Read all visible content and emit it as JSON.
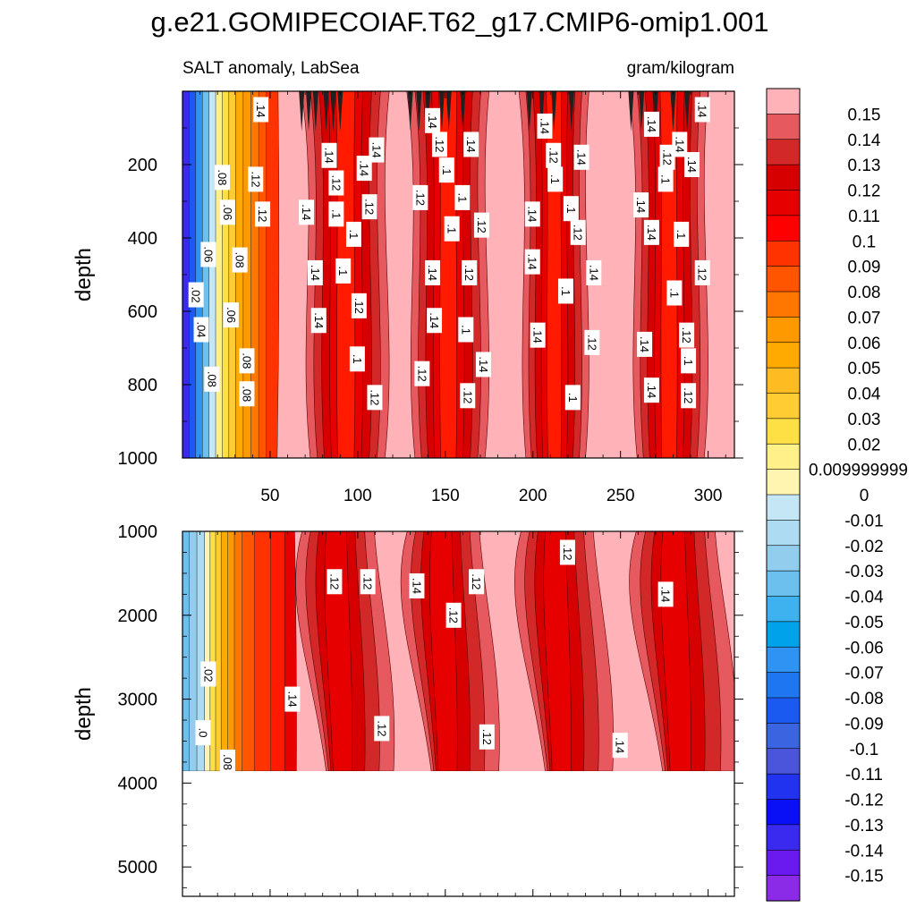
{
  "title": "g.e21.GOMIPECOIAF.T62_g17.CMIP6-omip1.001",
  "left_subtitle": "SALT anomaly, LabSea",
  "right_subtitle": "gram/kilogram",
  "chart_data": {
    "type": "heatmap",
    "description_units": "gram/kilogram",
    "x": {
      "range": [
        0,
        315
      ],
      "ticks": [
        50,
        100,
        150,
        200,
        250,
        300
      ]
    },
    "colorbar": {
      "labels": [
        "0.15",
        "0.14",
        "0.13",
        "0.12",
        "0.11",
        "0.1",
        "0.09",
        "0.08",
        "0.07",
        "0.06",
        "0.05",
        "0.04",
        "0.03",
        "0.02",
        "0.009999999",
        "0",
        "-0.01",
        "-0.02",
        "-0.03",
        "-0.04",
        "-0.05",
        "-0.06",
        "-0.07",
        "-0.08",
        "-0.09",
        "-0.1",
        "-0.11",
        "-0.12",
        "-0.13",
        "-0.14",
        "-0.15"
      ],
      "colors": [
        "#FFB3B8",
        "#E65A5F",
        "#D32828",
        "#D70000",
        "#E60000",
        "#FF0000",
        "#FF3300",
        "#FF5500",
        "#FF7700",
        "#FF9900",
        "#FFAA00",
        "#FFBB22",
        "#FFCC33",
        "#FFE044",
        "#FFF08A",
        "#FFF5B0",
        "#C4E6F5",
        "#ADDCF2",
        "#92CDEE",
        "#6CC0EE",
        "#3EB2EE",
        "#00A2EA",
        "#2E93F2",
        "#1E77F0",
        "#1A5AF0",
        "#3A64E0",
        "#4A55DC",
        "#2233F0",
        "#0A10F5",
        "#3A2AEF",
        "#6A1AEE",
        "#8B2BE8"
      ]
    },
    "upper_panel": {
      "ylabel": "depth",
      "y_range": [
        0,
        1000
      ],
      "y_ticks": [
        200,
        400,
        600,
        800,
        1000
      ],
      "contour_labels": [
        {
          "t": ".14",
          "x": 45,
          "y": 50
        },
        {
          "t": ".14",
          "x": 143,
          "y": 80
        },
        {
          "t": ".14",
          "x": 207,
          "y": 95
        },
        {
          "t": ".14",
          "x": 268,
          "y": 90
        },
        {
          "t": ".14",
          "x": 297,
          "y": 50
        },
        {
          "t": ".14",
          "x": 111,
          "y": 160
        },
        {
          "t": ".12",
          "x": 147,
          "y": 145
        },
        {
          "t": ".14",
          "x": 165,
          "y": 145
        },
        {
          "t": ".14",
          "x": 284,
          "y": 145
        },
        {
          "t": ".14",
          "x": 84,
          "y": 175
        },
        {
          "t": ".12",
          "x": 212,
          "y": 175
        },
        {
          "t": ".14",
          "x": 228,
          "y": 180
        },
        {
          "t": ".12",
          "x": 277,
          "y": 180
        },
        {
          "t": ".14",
          "x": 291,
          "y": 200
        },
        {
          "t": ".12",
          "x": 42,
          "y": 240
        },
        {
          "t": ".08",
          "x": 23,
          "y": 235
        },
        {
          "t": ".14",
          "x": 104,
          "y": 210
        },
        {
          "t": ".1",
          "x": 151,
          "y": 215
        },
        {
          "t": ".12",
          "x": 88,
          "y": 250
        },
        {
          "t": ".1",
          "x": 213,
          "y": 240
        },
        {
          "t": ".1",
          "x": 276,
          "y": 240
        },
        {
          "t": ".12",
          "x": 136,
          "y": 290
        },
        {
          "t": ".1",
          "x": 160,
          "y": 290
        },
        {
          "t": ".12",
          "x": 107,
          "y": 315
        },
        {
          "t": ".1",
          "x": 88,
          "y": 335
        },
        {
          "t": ".14",
          "x": 71,
          "y": 330
        },
        {
          "t": ".06",
          "x": 26,
          "y": 330
        },
        {
          "t": ".12",
          "x": 46,
          "y": 335
        },
        {
          "t": ".14",
          "x": 200,
          "y": 335
        },
        {
          "t": ".1",
          "x": 222,
          "y": 320
        },
        {
          "t": ".14",
          "x": 262,
          "y": 310
        },
        {
          "t": ".12",
          "x": 171,
          "y": 365
        },
        {
          "t": ".1",
          "x": 154,
          "y": 375
        },
        {
          "t": ".12",
          "x": 226,
          "y": 385
        },
        {
          "t": ".14",
          "x": 268,
          "y": 385
        },
        {
          "t": ".1",
          "x": 98,
          "y": 390
        },
        {
          "t": ".1",
          "x": 285,
          "y": 390
        },
        {
          "t": ".06",
          "x": 15,
          "y": 445
        },
        {
          "t": ".08",
          "x": 33,
          "y": 460
        },
        {
          "t": ".14",
          "x": 200,
          "y": 465
        },
        {
          "t": ".14",
          "x": 76,
          "y": 495
        },
        {
          "t": ".1",
          "x": 92,
          "y": 490
        },
        {
          "t": ".14",
          "x": 143,
          "y": 495
        },
        {
          "t": ".12",
          "x": 164,
          "y": 495
        },
        {
          "t": ".14",
          "x": 235,
          "y": 495
        },
        {
          "t": ".12",
          "x": 297,
          "y": 495
        },
        {
          "t": ".02",
          "x": 8,
          "y": 555
        },
        {
          "t": ".1",
          "x": 219,
          "y": 545
        },
        {
          "t": ".1",
          "x": 281,
          "y": 550
        },
        {
          "t": ".12",
          "x": 101,
          "y": 585
        },
        {
          "t": ".06",
          "x": 28,
          "y": 610
        },
        {
          "t": ".14",
          "x": 78,
          "y": 625
        },
        {
          "t": ".14",
          "x": 144,
          "y": 625
        },
        {
          "t": ".04",
          "x": 11,
          "y": 650
        },
        {
          "t": ".1",
          "x": 162,
          "y": 650
        },
        {
          "t": ".14",
          "x": 203,
          "y": 665
        },
        {
          "t": ".12",
          "x": 234,
          "y": 685
        },
        {
          "t": ".14",
          "x": 264,
          "y": 690
        },
        {
          "t": ".12",
          "x": 288,
          "y": 665
        },
        {
          "t": ".08",
          "x": 37,
          "y": 735
        },
        {
          "t": ".1",
          "x": 100,
          "y": 730
        },
        {
          "t": ".14",
          "x": 172,
          "y": 745
        },
        {
          "t": ".1",
          "x": 289,
          "y": 735
        },
        {
          "t": ".08",
          "x": 17,
          "y": 785
        },
        {
          "t": ".12",
          "x": 137,
          "y": 770
        },
        {
          "t": ".14",
          "x": 268,
          "y": 815
        },
        {
          "t": ".08",
          "x": 37,
          "y": 825
        },
        {
          "t": ".12",
          "x": 110,
          "y": 835
        },
        {
          "t": ".12",
          "x": 163,
          "y": 830
        },
        {
          "t": ".1",
          "x": 223,
          "y": 835
        },
        {
          "t": ".12",
          "x": 289,
          "y": 830
        }
      ]
    },
    "lower_panel": {
      "ylabel": "depth",
      "y_range": [
        1000,
        5350
      ],
      "y_ticks": [
        1000,
        2000,
        3000,
        4000,
        5000
      ],
      "data_bottom_depth": 3875,
      "contour_labels": [
        {
          "t": ".12",
          "x": 220,
          "y": 1250
        },
        {
          "t": ".12",
          "x": 87,
          "y": 1600
        },
        {
          "t": ".12",
          "x": 106,
          "y": 1600
        },
        {
          "t": ".14",
          "x": 134,
          "y": 1650
        },
        {
          "t": ".12",
          "x": 168,
          "y": 1600
        },
        {
          "t": ".14",
          "x": 276,
          "y": 1750
        },
        {
          "t": ".12",
          "x": 155,
          "y": 2000
        },
        {
          "t": ".02",
          "x": 15,
          "y": 2700
        },
        {
          "t": ".14",
          "x": 63,
          "y": 3000
        },
        {
          "t": ".12",
          "x": 114,
          "y": 3350
        },
        {
          "t": ".12",
          "x": 174,
          "y": 3450
        },
        {
          "t": ".14",
          "x": 250,
          "y": 3550
        },
        {
          "t": ".0",
          "x": 12,
          "y": 3400
        },
        {
          "t": ".08",
          "x": 26,
          "y": 3750
        }
      ]
    }
  }
}
